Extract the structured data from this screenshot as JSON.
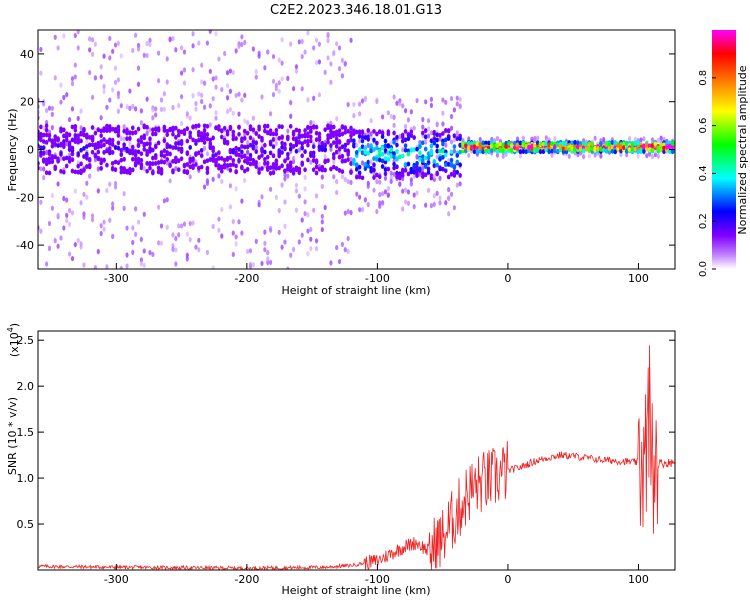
{
  "title": "C2E2.2023.346.18.01.G13",
  "colors": {
    "snr_line": "#ee2222",
    "background": "#ffffff"
  },
  "chart_data": [
    {
      "type": "heatmap",
      "xlabel": "Height of straight line (km)",
      "ylabel": "Frequency (Hz)",
      "xlim": [
        -360,
        128
      ],
      "ylim": [
        -50,
        50
      ],
      "x_ticks": [
        -300,
        -200,
        -100,
        0,
        100
      ],
      "y_ticks": [
        -40,
        -20,
        0,
        20,
        40
      ],
      "grid": false,
      "colorbar": {
        "label": "Normalized spectral amplitude",
        "range": [
          0.0,
          1.0
        ],
        "ticks": [
          0.0,
          0.2,
          0.4,
          0.6,
          0.8
        ],
        "colormap": [
          "#ffffff",
          "#8000ff",
          "#0000ff",
          "#00ffff",
          "#00ff00",
          "#ffff00",
          "#ff8000",
          "#ff0000",
          "#ff00ff"
        ]
      },
      "regions": [
        {
          "x_range": [
            -360,
            -120
          ],
          "center_hz": 0,
          "core_halfwidth_hz": 10,
          "scatter_halfwidth_hz": 50,
          "amplitude": 0.15
        },
        {
          "x_range": [
            -120,
            -35
          ],
          "center_hz": -2,
          "core_halfwidth_hz": 10,
          "scatter_halfwidth_hz": 25,
          "amplitude": 0.35
        },
        {
          "x_range": [
            -35,
            128
          ],
          "center_hz": 1,
          "core_halfwidth_hz": 2,
          "scatter_halfwidth_hz": 4,
          "amplitude": 0.9
        }
      ]
    },
    {
      "type": "line",
      "xlabel": "Height of straight line (km)",
      "ylabel": "SNR (10 * v/v)",
      "y_scale_label": "(x10",
      "y_scale_exponent": "4",
      "y_scale_close": ")",
      "xlim": [
        -360,
        128
      ],
      "ylim": [
        0,
        2.6
      ],
      "x_ticks": [
        -300,
        -200,
        -100,
        0,
        100
      ],
      "y_ticks": [
        0.5,
        1.0,
        1.5,
        2.0,
        2.5
      ],
      "grid": false,
      "series": [
        {
          "color": "#ee2222",
          "x": [
            -360,
            -300,
            -200,
            -140,
            -120,
            -100,
            -80,
            -70,
            -60,
            -50,
            -40,
            -30,
            -20,
            -10,
            0,
            10,
            20,
            30,
            40,
            50,
            60,
            70,
            80,
            90,
            100,
            105,
            108,
            110,
            115,
            128
          ],
          "y": [
            0.04,
            0.03,
            0.02,
            0.03,
            0.05,
            0.1,
            0.25,
            0.3,
            0.2,
            0.35,
            0.6,
            0.85,
            0.95,
            1.0,
            1.08,
            1.12,
            1.18,
            1.22,
            1.25,
            1.24,
            1.22,
            1.2,
            1.19,
            1.18,
            1.17,
            1.16,
            1.2,
            1.15,
            1.16,
            1.17
          ]
        }
      ]
    }
  ]
}
